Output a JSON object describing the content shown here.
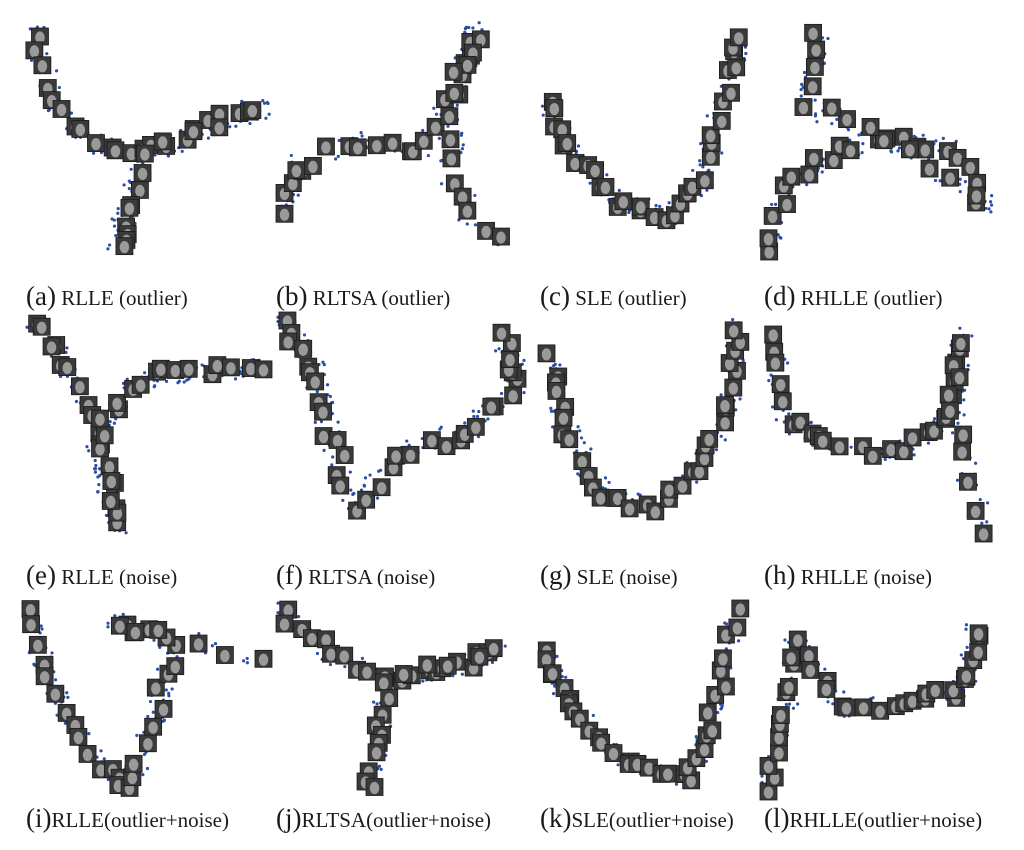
{
  "figure": {
    "point_color": "#2b4fa8",
    "thumb_color": "#3a3a3a",
    "panels": [
      {
        "id": "a",
        "letter": "(a)",
        "name": "RLLE (outlier)"
      },
      {
        "id": "b",
        "letter": "(b)",
        "name": "RLTSA  (outlier)"
      },
      {
        "id": "c",
        "letter": "(c)",
        "name": "SLE (outlier)"
      },
      {
        "id": "d",
        "letter": "(d)",
        "name": "RHLLE (outlier)"
      },
      {
        "id": "e",
        "letter": "(e)",
        "name": "RLLE (noise)"
      },
      {
        "id": "f",
        "letter": "(f)",
        "name": "RLTSA (noise)"
      },
      {
        "id": "g",
        "letter": "(g)",
        "name": "SLE (noise)"
      },
      {
        "id": "h",
        "letter": "(h)",
        "name": "RHLLE (noise)"
      },
      {
        "id": "i",
        "letter": "(i)",
        "name": "RLLE(outlier+noise)"
      },
      {
        "id": "j",
        "letter": "(j)",
        "name": "RLTSA(outlier+noise)"
      },
      {
        "id": "k",
        "letter": "(k)",
        "name": "SLE(outlier+noise)"
      },
      {
        "id": "l",
        "letter": "(l)",
        "name": "RHLLE(outlier+noise)"
      }
    ]
  }
}
